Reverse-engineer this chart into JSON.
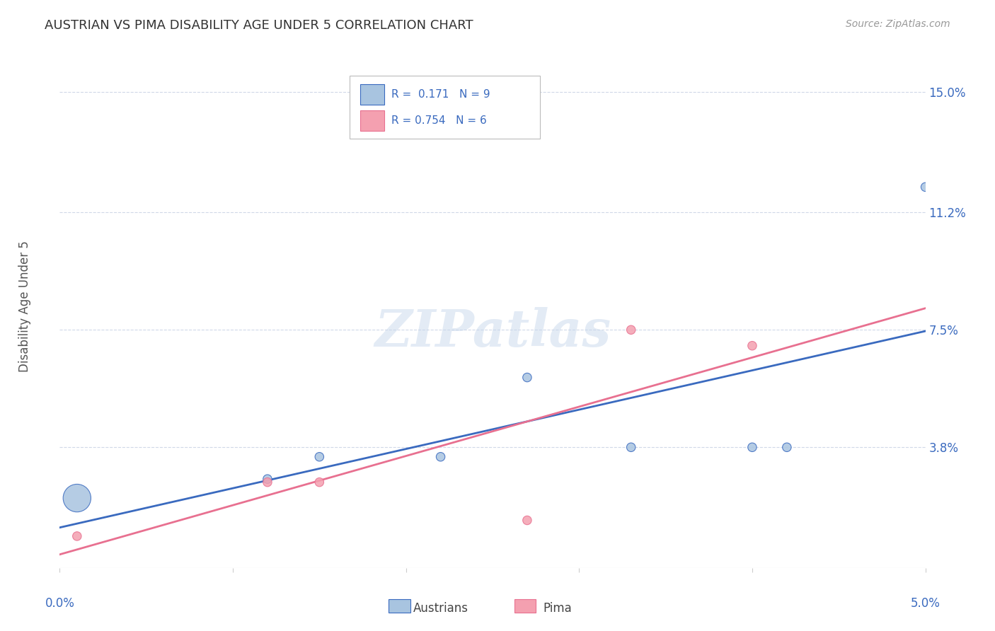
{
  "title": "AUSTRIAN VS PIMA DISABILITY AGE UNDER 5 CORRELATION CHART",
  "source": "Source: ZipAtlas.com",
  "ylabel": "Disability Age Under 5",
  "xlabel_bottom_left": "0.0%",
  "xlabel_bottom_right": "5.0%",
  "ytick_labels": [
    "15.0%",
    "11.2%",
    "7.5%",
    "3.8%"
  ],
  "ytick_values": [
    0.15,
    0.112,
    0.075,
    0.038
  ],
  "xmin": 0.0,
  "xmax": 0.05,
  "ymin": 0.0,
  "ymax": 0.165,
  "austrians_x": [
    0.001,
    0.012,
    0.015,
    0.022,
    0.027,
    0.033,
    0.04,
    0.042,
    0.05
  ],
  "austrians_y": [
    0.022,
    0.028,
    0.035,
    0.035,
    0.06,
    0.038,
    0.038,
    0.038,
    0.12
  ],
  "austrians_size": [
    800,
    80,
    80,
    80,
    80,
    80,
    80,
    80,
    80
  ],
  "pima_x": [
    0.001,
    0.012,
    0.015,
    0.027,
    0.033,
    0.04
  ],
  "pima_y": [
    0.01,
    0.027,
    0.027,
    0.015,
    0.075,
    0.07
  ],
  "pima_size": [
    80,
    80,
    80,
    80,
    80,
    80
  ],
  "austrians_color": "#a8c4e0",
  "pima_color": "#f4a0b0",
  "austrians_line_color": "#3a6abf",
  "pima_line_color": "#e87090",
  "legend_R_austrians": "0.171",
  "legend_N_austrians": "9",
  "legend_R_pima": "0.754",
  "legend_N_pima": "6",
  "watermark": "ZIPatlas",
  "background_color": "#ffffff",
  "grid_color": "#d0d8e8",
  "title_color": "#333333",
  "axis_label_color": "#3a6abf",
  "source_color": "#999999"
}
